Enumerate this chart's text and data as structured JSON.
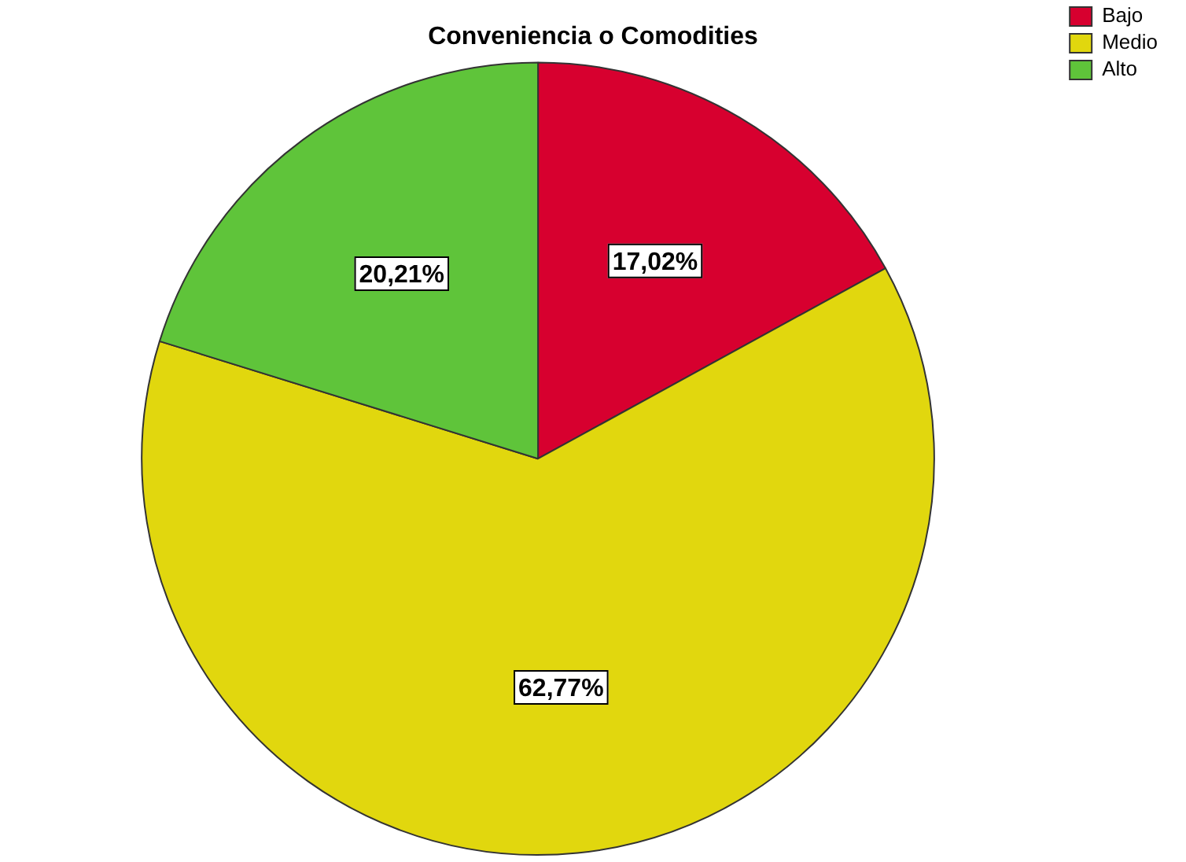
{
  "chart_data": {
    "type": "pie",
    "title": "Conveniencia o Comodities",
    "categories": [
      "Bajo",
      "Medio",
      "Alto"
    ],
    "values": [
      17.02,
      62.77,
      20.21
    ],
    "colors": [
      "#d7002f",
      "#e1d70e",
      "#5fc43a"
    ],
    "value_labels": [
      "17,02%",
      "62,77%",
      "20,21%"
    ],
    "legend": "top right"
  }
}
